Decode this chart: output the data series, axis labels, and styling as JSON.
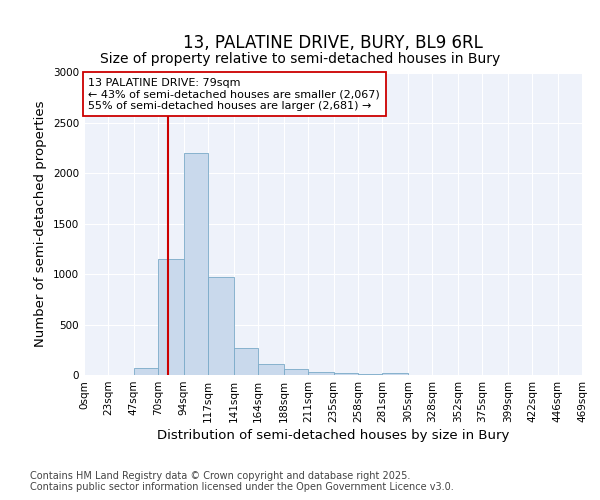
{
  "title": "13, PALATINE DRIVE, BURY, BL9 6RL",
  "subtitle": "Size of property relative to semi-detached houses in Bury",
  "xlabel": "Distribution of semi-detached houses by size in Bury",
  "ylabel": "Number of semi-detached properties",
  "bin_labels": [
    "0sqm",
    "23sqm",
    "47sqm",
    "70sqm",
    "94sqm",
    "117sqm",
    "141sqm",
    "164sqm",
    "188sqm",
    "211sqm",
    "235sqm",
    "258sqm",
    "281sqm",
    "305sqm",
    "328sqm",
    "352sqm",
    "375sqm",
    "399sqm",
    "422sqm",
    "446sqm",
    "469sqm"
  ],
  "bin_edges": [
    0,
    23,
    47,
    70,
    94,
    117,
    141,
    164,
    188,
    211,
    235,
    258,
    281,
    305,
    328,
    352,
    375,
    399,
    422,
    446,
    469
  ],
  "bar_heights": [
    0,
    0,
    65,
    1150,
    2200,
    970,
    265,
    110,
    55,
    28,
    15,
    8,
    20,
    0,
    0,
    0,
    0,
    0,
    0,
    0
  ],
  "bar_color": "#c9d9ec",
  "bar_edge_color": "#7aaac8",
  "property_size": 79,
  "red_line_color": "#cc0000",
  "annotation_line1": "13 PALATINE DRIVE: 79sqm",
  "annotation_line2": "← 43% of semi-detached houses are smaller (2,067)",
  "annotation_line3": "55% of semi-detached houses are larger (2,681) →",
  "annotation_box_color": "#ffffff",
  "annotation_box_edge": "#cc0000",
  "ylim": [
    0,
    3000
  ],
  "yticks": [
    0,
    500,
    1000,
    1500,
    2000,
    2500,
    3000
  ],
  "xlim_max": 469,
  "background_color": "#eef2fa",
  "footer_line1": "Contains HM Land Registry data © Crown copyright and database right 2025.",
  "footer_line2": "Contains public sector information licensed under the Open Government Licence v3.0.",
  "title_fontsize": 12,
  "subtitle_fontsize": 10,
  "axis_label_fontsize": 9.5,
  "tick_fontsize": 7.5,
  "annotation_fontsize": 8,
  "footer_fontsize": 7
}
